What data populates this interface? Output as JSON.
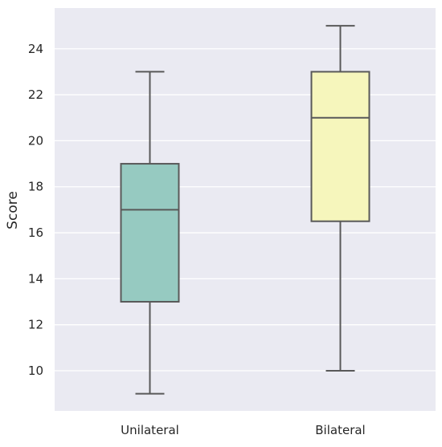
{
  "chart_data": {
    "type": "box",
    "title": "",
    "xlabel": "",
    "ylabel": "Score",
    "ylim": [
      8.2,
      25.8
    ],
    "yticks": [
      10,
      12,
      14,
      16,
      18,
      20,
      22,
      24
    ],
    "grid": true,
    "legend": "none",
    "categories": [
      "Unilateral",
      "Bilateral"
    ],
    "boxes": [
      {
        "category": "Unilateral",
        "min": 9,
        "q1": 13,
        "median": 17,
        "q3": 19,
        "max": 23,
        "color": "#96cac1"
      },
      {
        "category": "Bilateral",
        "min": 10,
        "q1": 16.5,
        "median": 21,
        "q3": 23,
        "max": 25,
        "color": "#f6f6bc"
      }
    ],
    "colors": {
      "plot_background": "#eaeaf2",
      "grid": "#ffffff",
      "box_edge": "#595959"
    }
  }
}
